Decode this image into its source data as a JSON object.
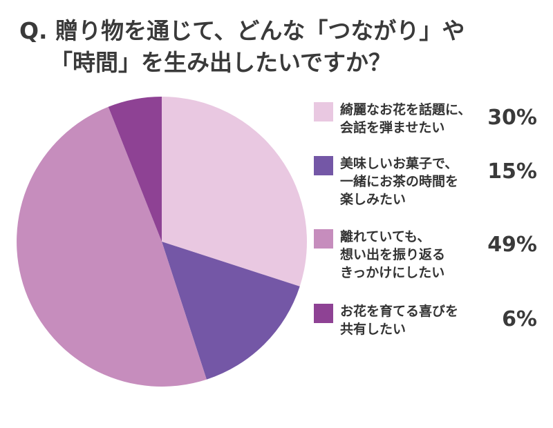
{
  "chart_data": {
    "type": "pie",
    "title": [
      "Q. 贈り物を通じて、どんな「つながり」や",
      "「時間」を生み出したいですか？"
    ],
    "slices": [
      {
        "label": [
          "綺麗なお花を話題に、",
          "会話を弾ませたい"
        ],
        "value": 30,
        "display": "30%",
        "color": "#e9c8e1"
      },
      {
        "label": [
          "美味しいお菓子で、",
          "一緒にお茶の時間を",
          "楽しみたい"
        ],
        "value": 15,
        "display": "15%",
        "color": "#7457a6"
      },
      {
        "label": [
          "離れていても、",
          "想い出を振り返る",
          "きっかけにしたい"
        ],
        "value": 49,
        "display": "49%",
        "color": "#c68dbd"
      },
      {
        "label": [
          "お花を育てる喜びを",
          "共有したい"
        ],
        "value": 6,
        "display": "6%",
        "color": "#8e4294"
      }
    ],
    "start_angle": "top",
    "direction": "clockwise",
    "legend_position": "right"
  }
}
